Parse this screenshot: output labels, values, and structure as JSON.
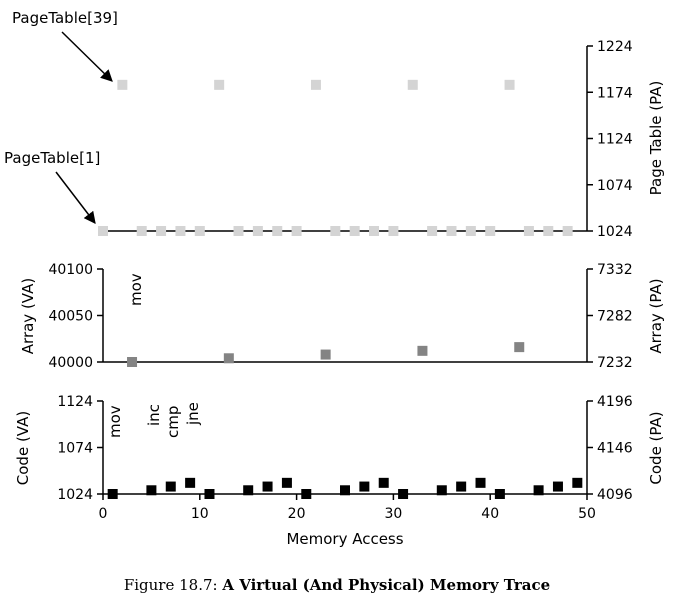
{
  "chart_data": [
    {
      "type": "scatter",
      "name": "page-table-panel",
      "xlim": [
        0,
        50
      ],
      "ylim": [
        1024,
        1224
      ],
      "y2label": "Page Table (PA)",
      "y2ticks": [
        "1224",
        "1174",
        "1124",
        "1074",
        "1024"
      ],
      "marker_color": "#d4d4d4",
      "series": [
        {
          "points": [
            {
              "x": 0,
              "y": 1024
            },
            {
              "x": 2,
              "y": 1182
            },
            {
              "x": 4,
              "y": 1024
            },
            {
              "x": 6,
              "y": 1024
            },
            {
              "x": 8,
              "y": 1024
            },
            {
              "x": 10,
              "y": 1024
            },
            {
              "x": 12,
              "y": 1182
            },
            {
              "x": 14,
              "y": 1024
            },
            {
              "x": 16,
              "y": 1024
            },
            {
              "x": 18,
              "y": 1024
            },
            {
              "x": 20,
              "y": 1024
            },
            {
              "x": 22,
              "y": 1182
            },
            {
              "x": 24,
              "y": 1024
            },
            {
              "x": 26,
              "y": 1024
            },
            {
              "x": 28,
              "y": 1024
            },
            {
              "x": 30,
              "y": 1024
            },
            {
              "x": 32,
              "y": 1182
            },
            {
              "x": 34,
              "y": 1024
            },
            {
              "x": 36,
              "y": 1024
            },
            {
              "x": 38,
              "y": 1024
            },
            {
              "x": 40,
              "y": 1024
            },
            {
              "x": 42,
              "y": 1182
            },
            {
              "x": 44,
              "y": 1024
            },
            {
              "x": 46,
              "y": 1024
            },
            {
              "x": 48,
              "y": 1024
            }
          ]
        }
      ],
      "annotations": [
        {
          "text": "PageTable[39]",
          "arrow_to": {
            "x": 2,
            "y": 1182
          }
        },
        {
          "text": "PageTable[1]",
          "arrow_to": {
            "x": 0,
            "y": 1024
          }
        }
      ]
    },
    {
      "type": "scatter",
      "name": "array-panel",
      "xlim": [
        0,
        50
      ],
      "ylim": [
        40000,
        40100
      ],
      "ylabel": "Array (VA)",
      "yticks": [
        "40100",
        "40050",
        "40000"
      ],
      "y2label": "Array (PA)",
      "y2ticks": [
        "7332",
        "7282",
        "7232"
      ],
      "marker_color": "#848484",
      "series": [
        {
          "points": [
            {
              "x": 3,
              "y": 40000
            },
            {
              "x": 13,
              "y": 40004
            },
            {
              "x": 23,
              "y": 40008
            },
            {
              "x": 33,
              "y": 40012
            },
            {
              "x": 43,
              "y": 40016
            }
          ]
        }
      ],
      "annotations": [
        {
          "text": "mov",
          "x": 3
        }
      ]
    },
    {
      "type": "scatter",
      "name": "code-panel",
      "xlim": [
        0,
        50
      ],
      "ylim": [
        1024,
        1124
      ],
      "ylabel": "Code (VA)",
      "yticks": [
        "1124",
        "1074",
        "1024"
      ],
      "y2label": "Code (PA)",
      "y2ticks": [
        "4196",
        "4146",
        "4096"
      ],
      "xlabel": "Memory Access",
      "xticks": [
        "0",
        "10",
        "20",
        "30",
        "40",
        "50"
      ],
      "marker_color": "#000000",
      "series": [
        {
          "points": [
            {
              "x": 1,
              "y": 1024
            },
            {
              "x": 5,
              "y": 1028
            },
            {
              "x": 7,
              "y": 1032
            },
            {
              "x": 9,
              "y": 1036
            },
            {
              "x": 11,
              "y": 1024
            },
            {
              "x": 15,
              "y": 1028
            },
            {
              "x": 17,
              "y": 1032
            },
            {
              "x": 19,
              "y": 1036
            },
            {
              "x": 21,
              "y": 1024
            },
            {
              "x": 25,
              "y": 1028
            },
            {
              "x": 27,
              "y": 1032
            },
            {
              "x": 29,
              "y": 1036
            },
            {
              "x": 31,
              "y": 1024
            },
            {
              "x": 35,
              "y": 1028
            },
            {
              "x": 37,
              "y": 1032
            },
            {
              "x": 39,
              "y": 1036
            },
            {
              "x": 41,
              "y": 1024
            },
            {
              "x": 45,
              "y": 1028
            },
            {
              "x": 47,
              "y": 1032
            },
            {
              "x": 49,
              "y": 1036
            }
          ]
        }
      ],
      "annotations": [
        {
          "text": "mov",
          "x": 1
        },
        {
          "text": "inc",
          "x": 5
        },
        {
          "text": "cmp",
          "x": 7
        },
        {
          "text": "jne",
          "x": 9
        }
      ]
    }
  ],
  "caption": {
    "prefix": "Figure 18.7: ",
    "title": "A Virtual (And Physical) Memory Trace"
  }
}
